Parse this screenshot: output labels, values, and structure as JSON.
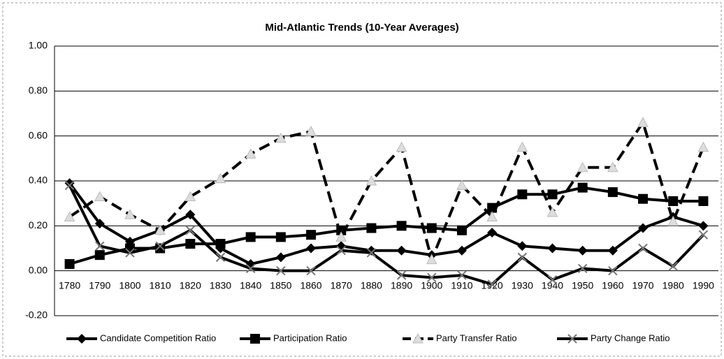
{
  "chart_data": {
    "type": "line",
    "title": "Mid-Atlantic Trends (10-Year Averages)",
    "categories": [
      "1780",
      "1790",
      "1800",
      "1810",
      "1820",
      "1830",
      "1840",
      "1850",
      "1860",
      "1870",
      "1880",
      "1890",
      "1900",
      "1910",
      "1920",
      "1930",
      "1940",
      "1950",
      "1960",
      "1970",
      "1980",
      "1990"
    ],
    "series": [
      {
        "name": "Candidate Competition Ratio",
        "color": "#000000",
        "marker": "diamond",
        "dashed": false,
        "values": [
          0.39,
          0.21,
          0.13,
          0.18,
          0.25,
          0.1,
          0.03,
          0.06,
          0.1,
          0.11,
          0.09,
          0.09,
          0.07,
          0.09,
          0.17,
          0.11,
          0.1,
          0.09,
          0.09,
          0.19,
          0.24,
          0.2
        ]
      },
      {
        "name": "Participation Ratio",
        "color": "#000000",
        "marker": "square",
        "dashed": false,
        "values": [
          0.03,
          0.07,
          0.1,
          0.1,
          0.12,
          0.12,
          0.15,
          0.15,
          0.16,
          0.18,
          0.19,
          0.2,
          0.19,
          0.18,
          0.28,
          0.34,
          0.34,
          0.37,
          0.35,
          0.32,
          0.31,
          0.31
        ]
      },
      {
        "name": "Party Transfer Ratio",
        "color": "#000000",
        "marker": "triangle",
        "dashed": true,
        "values": [
          0.24,
          0.33,
          0.25,
          0.18,
          0.33,
          0.41,
          0.52,
          0.59,
          0.62,
          0.15,
          0.4,
          0.55,
          0.05,
          0.38,
          0.24,
          0.55,
          0.26,
          0.46,
          0.46,
          0.66,
          0.22,
          0.55
        ]
      },
      {
        "name": "Party Change Ratio",
        "color": "#000000",
        "marker": "cross",
        "dashed": false,
        "values": [
          0.38,
          0.11,
          0.08,
          0.11,
          0.18,
          0.06,
          0.01,
          0.0,
          0.0,
          0.09,
          0.08,
          -0.02,
          -0.03,
          -0.02,
          -0.06,
          0.06,
          -0.04,
          0.01,
          0.0,
          0.1,
          0.02,
          0.16
        ]
      }
    ],
    "ylim": [
      -0.2,
      1.0
    ],
    "yticks": [
      {
        "value": -0.2,
        "label": "-0.20"
      },
      {
        "value": 0,
        "label": "0.00"
      },
      {
        "value": 0.2,
        "label": "0.20"
      },
      {
        "value": 0.4,
        "label": "0.40"
      },
      {
        "value": 0.6,
        "label": "0.60"
      },
      {
        "value": 0.8,
        "label": "0.80"
      },
      {
        "value": 1.0,
        "label": "1.00"
      }
    ],
    "grid": true,
    "legend": "bottom"
  }
}
